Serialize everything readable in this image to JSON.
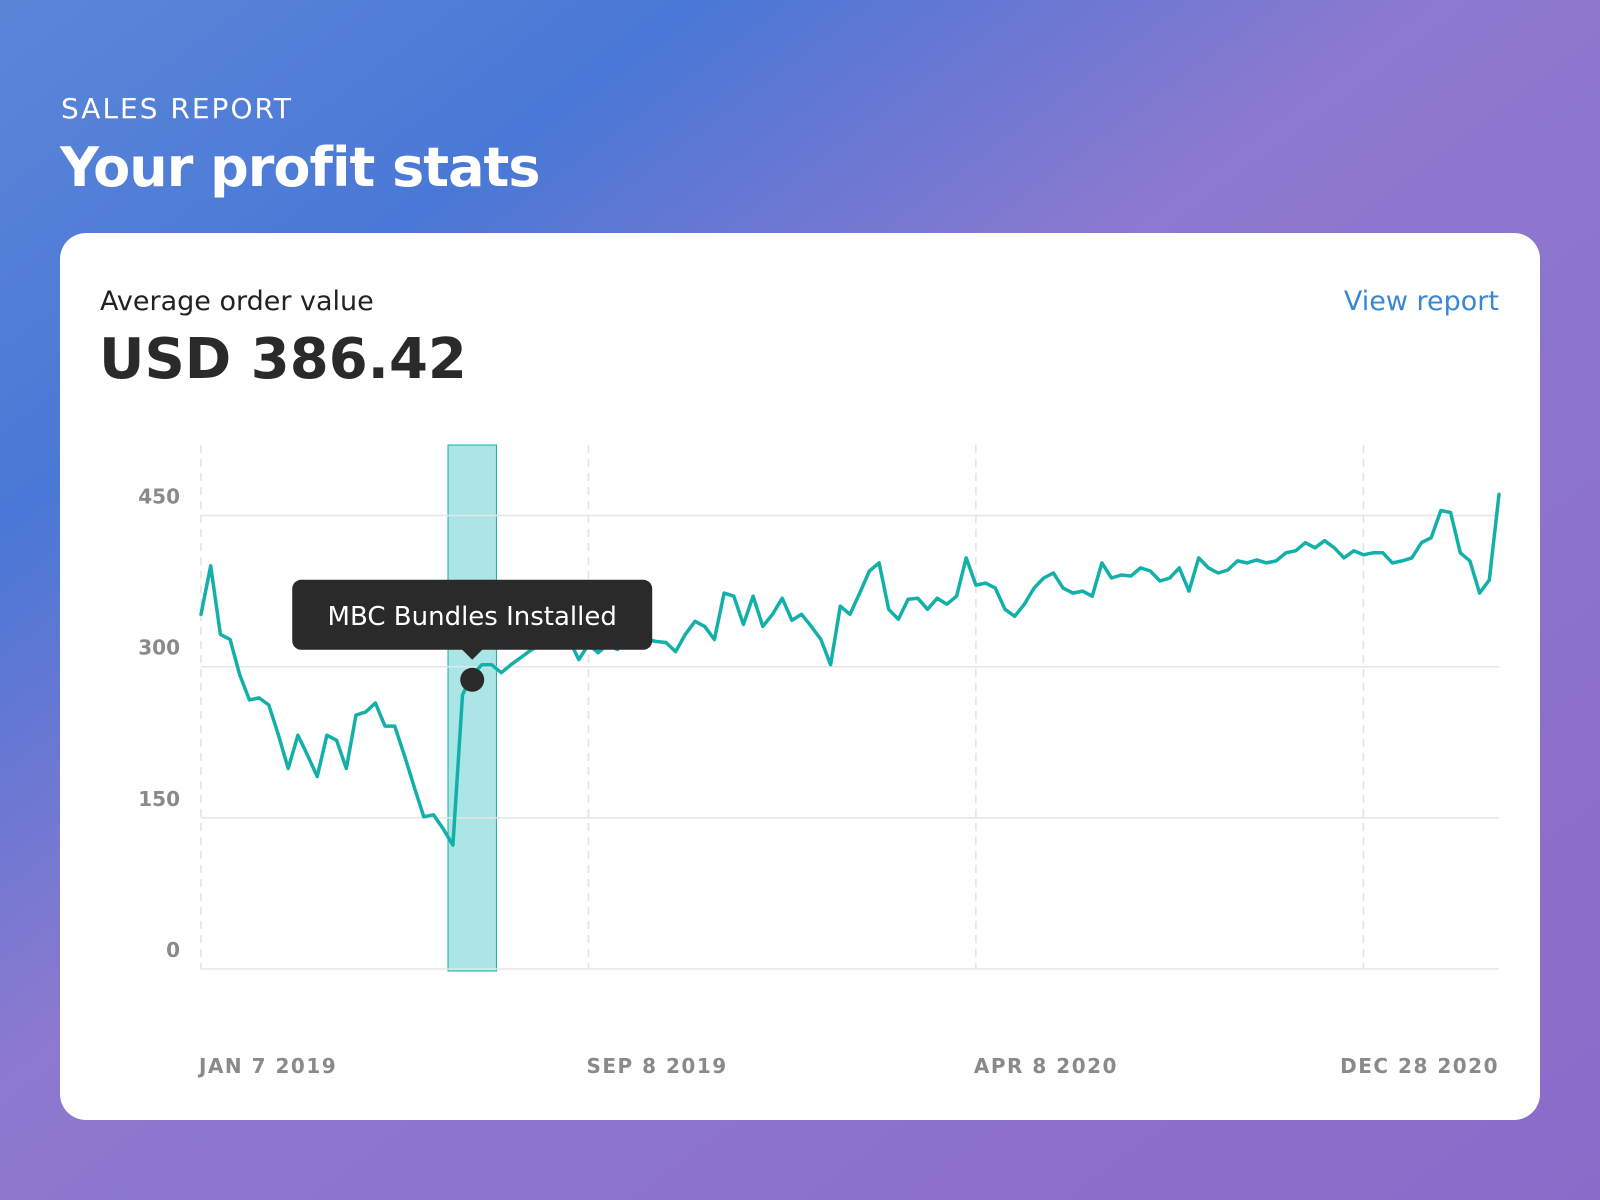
{
  "header": {
    "eyebrow": "SALES REPORT",
    "title": "Your profit stats"
  },
  "card": {
    "label": "Average order value",
    "value": "USD 386.42",
    "link": "View report"
  },
  "chart_data": {
    "type": "line",
    "categories": [
      "JAN 7 2019",
      null,
      null,
      null,
      null,
      null,
      null,
      null,
      null,
      null,
      null,
      null,
      null,
      null,
      null,
      null,
      null,
      null,
      null,
      null,
      null,
      null,
      null,
      null,
      null,
      null,
      null,
      null,
      null,
      null,
      null,
      null,
      null,
      null,
      null,
      null,
      null,
      null,
      null,
      null,
      "SEP 8 2019",
      null,
      null,
      null,
      null,
      null,
      null,
      null,
      null,
      null,
      null,
      null,
      null,
      null,
      null,
      null,
      null,
      null,
      null,
      null,
      null,
      null,
      null,
      null,
      null,
      null,
      null,
      null,
      null,
      null,
      null,
      null,
      null,
      null,
      null,
      null,
      null,
      null,
      null,
      null,
      "APR 8 2020",
      null,
      null,
      null,
      null,
      null,
      null,
      null,
      null,
      null,
      null,
      null,
      null,
      null,
      null,
      null,
      null,
      null,
      null,
      null,
      null,
      null,
      null,
      null,
      null,
      null,
      null,
      null,
      null,
      null,
      null,
      null,
      null,
      null,
      null,
      null,
      null,
      null,
      null,
      null,
      "DEC 28 2020",
      null,
      null,
      null,
      null,
      null,
      null,
      null,
      null,
      null,
      null,
      null,
      null,
      null,
      null
    ],
    "series": [
      {
        "name": "Average order value",
        "color": "#12b0a8",
        "values": [
          352,
          400,
          332,
          327,
          292,
          267,
          269,
          262,
          232,
          199,
          232,
          212,
          191,
          232,
          227,
          199,
          252,
          255,
          264,
          241,
          241,
          212,
          181,
          151,
          153,
          139,
          123,
          272,
          292,
          302,
          302,
          294,
          302,
          309,
          316,
          322,
          327,
          330,
          327,
          307,
          322,
          314,
          322,
          317,
          327,
          330,
          327,
          325,
          324,
          315,
          332,
          345,
          340,
          327,
          373,
          370,
          342,
          370,
          340,
          352,
          368,
          346,
          352,
          340,
          327,
          302,
          360,
          352,
          373,
          395,
          403,
          357,
          347,
          367,
          368,
          357,
          368,
          362,
          370,
          408,
          381,
          383,
          378,
          357,
          350,
          362,
          378,
          388,
          393,
          378,
          373,
          375,
          370,
          403,
          388,
          391,
          390,
          398,
          395,
          385,
          388,
          398,
          375,
          408,
          398,
          393,
          396,
          405,
          403,
          406,
          403,
          405,
          413,
          415,
          423,
          418,
          425,
          418,
          408,
          415,
          411,
          413,
          413,
          403,
          405,
          408,
          423,
          428,
          455,
          453,
          413,
          405,
          373,
          386,
          471
        ]
      }
    ],
    "ylim": [
      0,
      520
    ],
    "yticks": [
      0,
      150,
      300,
      450
    ],
    "grid": true,
    "annotation": {
      "label": "MBC Bundles Installed",
      "index": 28,
      "value": 287,
      "band": [
        25.5,
        30.5
      ],
      "band_color": "#abe5e5"
    }
  }
}
